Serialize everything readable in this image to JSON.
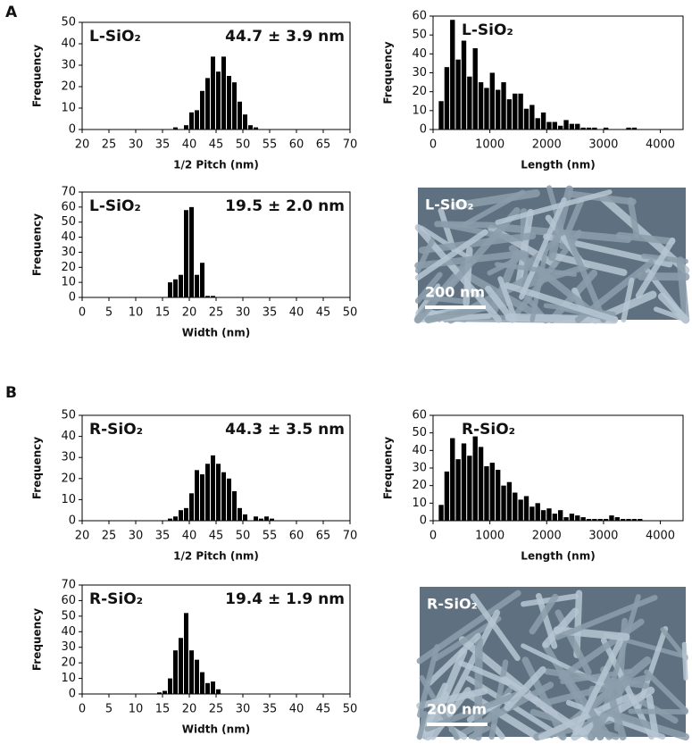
{
  "panel_labels": [
    "A",
    "B"
  ],
  "chart_data": [
    {
      "type": "histogram",
      "x_label": "1/2 Pitch (nm)",
      "y_label": "Frequency",
      "annotations": [
        "L-SiO₂",
        "44.7 ± 3.9 nm"
      ],
      "color": "#000000",
      "bins": [
        37,
        38,
        39,
        40,
        41,
        42,
        43,
        44,
        45,
        46,
        47,
        48,
        49,
        50,
        51,
        52,
        53
      ],
      "values": [
        1,
        0,
        2,
        8,
        9,
        18,
        24,
        34,
        27,
        34,
        25,
        22,
        13,
        7,
        2,
        1
      ],
      "xlim": [
        20,
        70
      ],
      "xticks": [
        20,
        25,
        30,
        35,
        40,
        45,
        50,
        55,
        60,
        65,
        70
      ],
      "ylim": [
        0,
        50
      ],
      "yticks": [
        0,
        10,
        20,
        30,
        40,
        50
      ]
    },
    {
      "type": "histogram",
      "x_label": "Length (nm)",
      "y_label": "Frequency",
      "annotations": [
        "L-SiO₂"
      ],
      "color": "#000000",
      "bins": [
        100,
        200,
        300,
        400,
        500,
        600,
        700,
        800,
        900,
        1000,
        1100,
        1200,
        1300,
        1400,
        1500,
        1600,
        1700,
        1800,
        1900,
        2000,
        2100,
        2200,
        2300,
        2400,
        2500,
        2600,
        2700,
        2800,
        2900,
        3000,
        3100,
        3200,
        3300,
        3400,
        3500,
        3600
      ],
      "values": [
        15,
        33,
        58,
        37,
        47,
        28,
        43,
        25,
        22,
        30,
        21,
        25,
        16,
        19,
        19,
        11,
        13,
        6,
        9,
        4,
        4,
        2,
        5,
        3,
        3,
        1,
        1,
        1,
        0,
        1,
        0,
        0,
        0,
        1,
        1
      ],
      "xlim": [
        0,
        4400
      ],
      "xticks": [
        0,
        1000,
        2000,
        3000,
        4000
      ],
      "ylim": [
        0,
        60
      ],
      "yticks": [
        0,
        10,
        20,
        30,
        40,
        50,
        60
      ]
    },
    {
      "type": "histogram",
      "x_label": "Width (nm)",
      "y_label": "Frequency",
      "annotations": [
        "L-SiO₂",
        "19.5 ± 2.0 nm"
      ],
      "color": "#000000",
      "bins": [
        16,
        17,
        18,
        19,
        20,
        21,
        22,
        23,
        24,
        25
      ],
      "values": [
        10,
        12,
        15,
        58,
        60,
        15,
        23,
        1,
        1
      ],
      "xlim": [
        0,
        50
      ],
      "xticks": [
        0,
        5,
        10,
        15,
        20,
        25,
        30,
        35,
        40,
        45,
        50
      ],
      "ylim": [
        0,
        70
      ],
      "yticks": [
        0,
        10,
        20,
        30,
        40,
        50,
        60,
        70
      ]
    },
    {
      "type": "histogram",
      "x_label": "1/2 Pitch (nm)",
      "y_label": "Frequency",
      "annotations": [
        "R-SiO₂",
        "44.3 ± 3.5 nm"
      ],
      "color": "#000000",
      "bins": [
        36,
        37,
        38,
        39,
        40,
        41,
        42,
        43,
        44,
        45,
        46,
        47,
        48,
        49,
        50,
        51,
        52,
        53,
        54,
        55,
        56
      ],
      "values": [
        1,
        2,
        5,
        6,
        13,
        24,
        22,
        27,
        31,
        27,
        23,
        20,
        14,
        6,
        3,
        0,
        2,
        1,
        2,
        1
      ],
      "xlim": [
        20,
        70
      ],
      "xticks": [
        20,
        25,
        30,
        35,
        40,
        45,
        50,
        55,
        60,
        65,
        70
      ],
      "ylim": [
        0,
        50
      ],
      "yticks": [
        0,
        10,
        20,
        30,
        40,
        50
      ]
    },
    {
      "type": "histogram",
      "x_label": "Length (nm)",
      "y_label": "Frequency",
      "annotations": [
        "R-SiO₂"
      ],
      "color": "#000000",
      "bins": [
        100,
        200,
        300,
        400,
        500,
        600,
        700,
        800,
        900,
        1000,
        1100,
        1200,
        1300,
        1400,
        1500,
        1600,
        1700,
        1800,
        1900,
        2000,
        2100,
        2200,
        2300,
        2400,
        2500,
        2600,
        2700,
        2800,
        2900,
        3000,
        3100,
        3200,
        3300,
        3400,
        3500,
        3600,
        3700
      ],
      "values": [
        9,
        28,
        47,
        35,
        44,
        37,
        48,
        42,
        31,
        33,
        29,
        20,
        22,
        16,
        12,
        14,
        8,
        10,
        6,
        7,
        4,
        6,
        2,
        4,
        3,
        2,
        1,
        1,
        1,
        1,
        3,
        2,
        1,
        1,
        1,
        1
      ],
      "xlim": [
        0,
        4400
      ],
      "xticks": [
        0,
        1000,
        2000,
        3000,
        4000
      ],
      "ylim": [
        0,
        60
      ],
      "yticks": [
        0,
        10,
        20,
        30,
        40,
        50,
        60
      ]
    },
    {
      "type": "histogram",
      "x_label": "Width (nm)",
      "y_label": "Frequency",
      "annotations": [
        "R-SiO₂",
        "19.4 ± 1.9 nm"
      ],
      "color": "#000000",
      "bins": [
        14,
        15,
        16,
        17,
        18,
        19,
        20,
        21,
        22,
        23,
        24,
        25,
        26
      ],
      "values": [
        1,
        2,
        10,
        28,
        36,
        52,
        28,
        22,
        14,
        7,
        8,
        3
      ],
      "xlim": [
        0,
        50
      ],
      "xticks": [
        0,
        5,
        10,
        15,
        20,
        25,
        30,
        35,
        40,
        45,
        50
      ],
      "ylim": [
        0,
        70
      ],
      "yticks": [
        0,
        10,
        20,
        30,
        40,
        50,
        60,
        70
      ]
    }
  ],
  "images": [
    {
      "label": "L-SiO₂",
      "scale_bar": "200 nm"
    },
    {
      "label": "R-SiO₂",
      "scale_bar": "200 nm"
    }
  ]
}
